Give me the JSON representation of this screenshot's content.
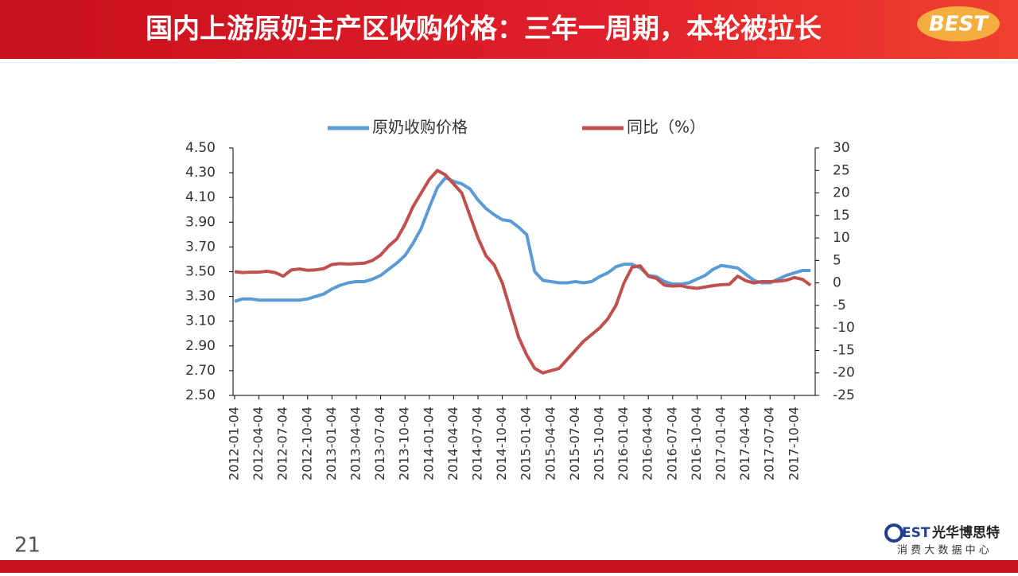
{
  "slide": {
    "title": "国内上游原奶主产区收购价格：三年一周期，本轮被拉长",
    "header_logo": "BEST",
    "page_number": "21",
    "footer_logo": "EST",
    "footer_brand": "光华博思特",
    "footer_sub": "消 费 大 数 据 中 心"
  },
  "chart_data": {
    "type": "line",
    "categories": [
      "2012-01-04",
      null,
      null,
      "2012-04-04",
      null,
      null,
      "2012-07-04",
      null,
      null,
      "2012-10-04",
      null,
      null,
      "2013-01-04",
      null,
      null,
      "2013-04-04",
      null,
      null,
      "2013-07-04",
      null,
      null,
      "2013-10-04",
      null,
      null,
      "2014-01-04",
      null,
      null,
      "2014-04-04",
      null,
      null,
      "2014-07-04",
      null,
      null,
      "2014-10-04",
      null,
      null,
      "2015-01-04",
      null,
      null,
      "2015-04-04",
      null,
      null,
      "2015-07-04",
      null,
      null,
      "2015-10-04",
      null,
      null,
      "2016-01-04",
      null,
      null,
      "2016-04-04",
      null,
      null,
      "2016-07-04",
      null,
      null,
      "2016-10-04",
      null,
      null,
      "2017-01-04",
      null,
      null,
      "2017-04-04",
      null,
      null,
      "2017-07-04",
      null,
      null,
      "2017-10-04",
      null,
      null
    ],
    "series": [
      {
        "name": "原奶收购价格",
        "color": "#5b9bd5",
        "values": [
          3.26,
          3.28,
          3.28,
          3.27,
          3.27,
          3.27,
          3.27,
          3.27,
          3.27,
          3.28,
          3.3,
          3.32,
          3.36,
          3.39,
          3.41,
          3.42,
          3.42,
          3.44,
          3.47,
          3.52,
          3.57,
          3.63,
          3.73,
          3.85,
          4.02,
          4.18,
          4.26,
          4.23,
          4.21,
          4.17,
          4.08,
          4.01,
          3.96,
          3.92,
          3.91,
          3.86,
          3.8,
          3.5,
          3.43,
          3.42,
          3.41,
          3.41,
          3.42,
          3.41,
          3.42,
          3.46,
          3.49,
          3.54,
          3.56,
          3.56,
          3.53,
          3.47,
          3.46,
          3.42,
          3.4,
          3.4,
          3.41,
          3.44,
          3.47,
          3.52,
          3.55,
          3.54,
          3.53,
          3.48,
          3.43,
          3.41,
          3.41,
          3.44,
          3.47,
          3.49,
          3.51,
          3.51
        ]
      },
      {
        "name": "同比（%）",
        "color": "#c0504d",
        "axis": "y2",
        "values": [
          2.5,
          2.3,
          2.4,
          2.4,
          2.6,
          2.3,
          1.5,
          2.9,
          3.1,
          2.8,
          2.9,
          3.2,
          4.1,
          4.3,
          4.2,
          4.3,
          4.4,
          5.0,
          6.2,
          8.2,
          9.8,
          13,
          17,
          20,
          23,
          25,
          24,
          22,
          20,
          15,
          10,
          6,
          4,
          0,
          -6,
          -12,
          -16,
          -19,
          -20,
          -19.5,
          -19,
          -17,
          -15,
          -13,
          -11.5,
          -10,
          -8,
          -5,
          0,
          3.5,
          3.8,
          1.5,
          1.0,
          -0.5,
          -0.7,
          -0.6,
          -1.0,
          -1.2,
          -0.9,
          -0.6,
          -0.4,
          -0.3,
          1.5,
          0.5,
          0.0,
          0.3,
          0.3,
          0.4,
          0.6,
          1.2,
          0.8,
          -0.5
        ]
      }
    ],
    "ylim": [
      2.5,
      4.5
    ],
    "yticks": [
      {
        "value": 2.5,
        "label": "2.50"
      },
      {
        "value": 2.7,
        "label": "2.70"
      },
      {
        "value": 2.9,
        "label": "2.90"
      },
      {
        "value": 3.1,
        "label": "3.10"
      },
      {
        "value": 3.3,
        "label": "3.30"
      },
      {
        "value": 3.5,
        "label": "3.50"
      },
      {
        "value": 3.7,
        "label": "3.70"
      },
      {
        "value": 3.9,
        "label": "3.90"
      },
      {
        "value": 4.1,
        "label": "4.10"
      },
      {
        "value": 4.3,
        "label": "4.30"
      },
      {
        "value": 4.5,
        "label": "4.50"
      }
    ],
    "y2lim": [
      -25,
      30
    ],
    "y2ticks": [
      -25,
      -20,
      -15,
      -10,
      -5,
      0,
      5,
      10,
      15,
      20,
      25,
      30
    ]
  }
}
